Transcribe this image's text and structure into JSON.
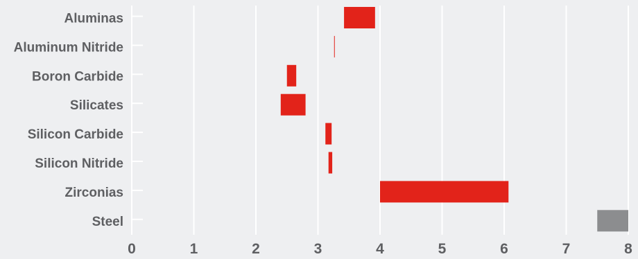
{
  "chart_data": {
    "type": "bar",
    "orientation": "horizontal-range",
    "title": "",
    "xlabel": "",
    "ylabel": "",
    "xlim": [
      0,
      8
    ],
    "x_ticks": [
      "0",
      "1",
      "2",
      "3",
      "4",
      "5",
      "6",
      "7",
      "8"
    ],
    "grid": "vertical",
    "categories": [
      "Aluminas",
      "Aluminum Nitride",
      "Boron Carbide",
      "Silicates",
      "Silicon Carbide",
      "Silicon Nitride",
      "Zirconias",
      "Steel"
    ],
    "series": [
      {
        "ranges": [
          [
            3.42,
            3.92
          ],
          [
            3.26,
            3.27
          ],
          [
            2.5,
            2.65
          ],
          [
            2.4,
            2.8
          ],
          [
            3.12,
            3.22
          ],
          [
            3.17,
            3.23
          ],
          [
            4.0,
            6.07
          ],
          [
            7.5,
            8.0
          ]
        ],
        "colors": [
          "#e2231a",
          "#e2231a",
          "#e2231a",
          "#e2231a",
          "#e2231a",
          "#e2231a",
          "#e2231a",
          "#8c8d8f"
        ]
      }
    ],
    "colors": {
      "ceramic": "#e2231a",
      "steel": "#8c8d8f",
      "grid": "#ffffff",
      "text": "#5e5f62",
      "background": "#eeeff1"
    }
  }
}
